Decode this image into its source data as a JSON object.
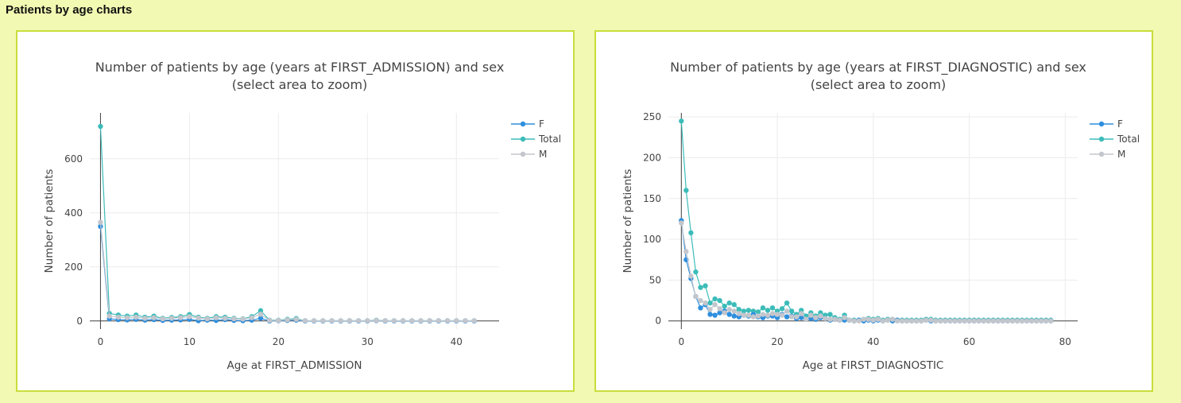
{
  "page_title": "Patients by age charts",
  "colors": {
    "F": "#2e8fde",
    "Total": "#3cbcb9",
    "M": "#c3c6cc"
  },
  "chart_data": [
    {
      "type": "line",
      "title": "Number of patients by age (years at FIRST_ADMISSION) and sex",
      "subtitle": "(select area to zoom)",
      "xlabel": "Age at FIRST_ADMISSION",
      "ylabel": "Number of patients",
      "xlim": [
        -1.2,
        44.8
      ],
      "ylim": [
        -30,
        770
      ],
      "xticks": [
        0,
        10,
        20,
        30,
        40
      ],
      "yticks": [
        0,
        200,
        400,
        600
      ],
      "legend": [
        "F",
        "Total",
        "M"
      ],
      "series": [
        {
          "name": "F",
          "x": [
            0,
            1,
            2,
            3,
            4,
            5,
            6,
            7,
            8,
            9,
            10,
            11,
            12,
            13,
            14,
            15,
            16,
            17,
            18,
            19,
            20,
            21,
            22,
            23,
            24,
            25,
            26,
            27,
            28,
            29,
            30,
            31,
            32,
            33,
            34,
            35,
            36,
            37,
            38,
            39,
            40,
            41,
            42
          ],
          "y": [
            350,
            8,
            5,
            4,
            6,
            3,
            5,
            2,
            3,
            4,
            6,
            1,
            3,
            2,
            5,
            2,
            1,
            3,
            10,
            0,
            1,
            2,
            3,
            0,
            0,
            0,
            0,
            0,
            0,
            0,
            0,
            1,
            0,
            0,
            0,
            0,
            0,
            0,
            0,
            0,
            0,
            0,
            0
          ]
        },
        {
          "name": "Total",
          "x": [
            0,
            1,
            2,
            3,
            4,
            5,
            6,
            7,
            8,
            9,
            10,
            11,
            12,
            13,
            14,
            15,
            16,
            17,
            18,
            19,
            20,
            21,
            22,
            23,
            24,
            25,
            26,
            27,
            28,
            29,
            30,
            31,
            32,
            33,
            34,
            35,
            36,
            37,
            38,
            39,
            40,
            41,
            42
          ],
          "y": [
            720,
            28,
            22,
            18,
            22,
            14,
            18,
            10,
            13,
            16,
            24,
            14,
            10,
            16,
            14,
            10,
            8,
            16,
            38,
            3,
            3,
            6,
            9,
            1,
            1,
            1,
            1,
            1,
            1,
            1,
            1,
            3,
            1,
            1,
            1,
            1,
            1,
            1,
            1,
            1,
            1,
            1,
            1
          ]
        },
        {
          "name": "M",
          "x": [
            0,
            1,
            2,
            3,
            4,
            5,
            6,
            7,
            8,
            9,
            10,
            11,
            12,
            13,
            14,
            15,
            16,
            17,
            18,
            19,
            20,
            21,
            22,
            23,
            24,
            25,
            26,
            27,
            28,
            29,
            30,
            31,
            32,
            33,
            34,
            35,
            36,
            37,
            38,
            39,
            40,
            41,
            42
          ],
          "y": [
            365,
            18,
            14,
            12,
            14,
            10,
            12,
            8,
            10,
            12,
            16,
            11,
            8,
            12,
            10,
            8,
            7,
            12,
            25,
            2,
            2,
            4,
            6,
            1,
            1,
            1,
            1,
            1,
            1,
            1,
            1,
            2,
            1,
            1,
            1,
            1,
            1,
            1,
            1,
            1,
            1,
            1,
            1
          ]
        }
      ]
    },
    {
      "type": "line",
      "title": "Number of patients by age (years at FIRST_DIAGNOSTIC) and sex",
      "subtitle": "(select area to zoom)",
      "xlabel": "Age at FIRST_DIAGNOSTIC",
      "ylabel": "Number of patients",
      "xlim": [
        -2.7,
        82.6
      ],
      "ylim": [
        -10,
        255
      ],
      "xticks": [
        0,
        20,
        40,
        60,
        80
      ],
      "yticks": [
        0,
        50,
        100,
        150,
        200,
        250
      ],
      "legend": [
        "F",
        "Total",
        "M"
      ],
      "series": [
        {
          "name": "F",
          "x": [
            0,
            1,
            2,
            3,
            4,
            5,
            6,
            7,
            8,
            9,
            10,
            11,
            12,
            13,
            14,
            15,
            16,
            17,
            18,
            19,
            20,
            21,
            22,
            23,
            24,
            25,
            26,
            27,
            28,
            29,
            30,
            31,
            32,
            33,
            34,
            35,
            36,
            37,
            38,
            39,
            40,
            41,
            42,
            43,
            44,
            45,
            46,
            47,
            48,
            49,
            50,
            51,
            52,
            53,
            54,
            55,
            56,
            57,
            58,
            59,
            60,
            61,
            62,
            63,
            64,
            65,
            66,
            67,
            68,
            69,
            70,
            71,
            72,
            73,
            74,
            75,
            76,
            77
          ],
          "y": [
            123,
            75,
            52,
            30,
            16,
            20,
            8,
            7,
            10,
            12,
            8,
            6,
            5,
            7,
            6,
            8,
            5,
            4,
            6,
            6,
            4,
            8,
            5,
            6,
            3,
            4,
            2,
            3,
            2,
            4,
            3,
            1,
            2,
            1,
            1,
            1,
            0,
            1,
            0,
            1,
            0,
            1,
            0,
            1,
            0,
            1,
            0,
            0,
            0,
            0,
            0,
            1,
            0,
            0,
            0,
            0,
            0,
            0,
            0,
            0,
            0,
            0,
            0,
            0,
            0,
            0,
            0,
            0,
            0,
            0,
            0,
            0,
            0,
            0,
            0,
            0,
            0,
            0
          ]
        },
        {
          "name": "Total",
          "x": [
            0,
            1,
            2,
            3,
            4,
            5,
            6,
            7,
            8,
            9,
            10,
            11,
            12,
            13,
            14,
            15,
            16,
            17,
            18,
            19,
            20,
            21,
            22,
            23,
            24,
            25,
            26,
            27,
            28,
            29,
            30,
            31,
            32,
            33,
            34,
            35,
            36,
            37,
            38,
            39,
            40,
            41,
            42,
            43,
            44,
            45,
            46,
            47,
            48,
            49,
            50,
            51,
            52,
            53,
            54,
            55,
            56,
            57,
            58,
            59,
            60,
            61,
            62,
            63,
            64,
            65,
            66,
            67,
            68,
            69,
            70,
            71,
            72,
            73,
            74,
            75,
            76,
            77
          ],
          "y": [
            245,
            160,
            108,
            60,
            41,
            43,
            22,
            27,
            25,
            18,
            22,
            20,
            14,
            12,
            13,
            12,
            11,
            16,
            13,
            16,
            12,
            15,
            22,
            12,
            8,
            13,
            6,
            10,
            6,
            10,
            7,
            8,
            4,
            2,
            7,
            1,
            1,
            1,
            2,
            3,
            2,
            3,
            1,
            2,
            2,
            1,
            1,
            1,
            1,
            1,
            1,
            2,
            2,
            1,
            1,
            1,
            1,
            1,
            1,
            1,
            1,
            1,
            1,
            1,
            1,
            1,
            1,
            1,
            1,
            1,
            1,
            1,
            1,
            1,
            1,
            1,
            1,
            1
          ]
        },
        {
          "name": "M",
          "x": [
            0,
            1,
            2,
            3,
            4,
            5,
            6,
            7,
            8,
            9,
            10,
            11,
            12,
            13,
            14,
            15,
            16,
            17,
            18,
            19,
            20,
            21,
            22,
            23,
            24,
            25,
            26,
            27,
            28,
            29,
            30,
            31,
            32,
            33,
            34,
            35,
            36,
            37,
            38,
            39,
            40,
            41,
            42,
            43,
            44,
            45,
            46,
            47,
            48,
            49,
            50,
            51,
            52,
            53,
            54,
            55,
            56,
            57,
            58,
            59,
            60,
            61,
            62,
            63,
            64,
            65,
            66,
            67,
            68,
            69,
            70,
            71,
            72,
            73,
            74,
            75,
            76,
            77
          ],
          "y": [
            120,
            85,
            55,
            30,
            25,
            22,
            14,
            20,
            15,
            10,
            14,
            12,
            9,
            7,
            7,
            5,
            6,
            8,
            7,
            9,
            8,
            7,
            12,
            5,
            5,
            9,
            2,
            7,
            4,
            6,
            3,
            2,
            2,
            1,
            4,
            1,
            0,
            0,
            2,
            2,
            1,
            2,
            0,
            1,
            2,
            0,
            0,
            0,
            0,
            0,
            0,
            1,
            1,
            0,
            0,
            0,
            0,
            0,
            0,
            0,
            0,
            0,
            0,
            0,
            0,
            0,
            0,
            0,
            0,
            0,
            0,
            0,
            0,
            0,
            0,
            0,
            0,
            0
          ]
        }
      ]
    }
  ]
}
